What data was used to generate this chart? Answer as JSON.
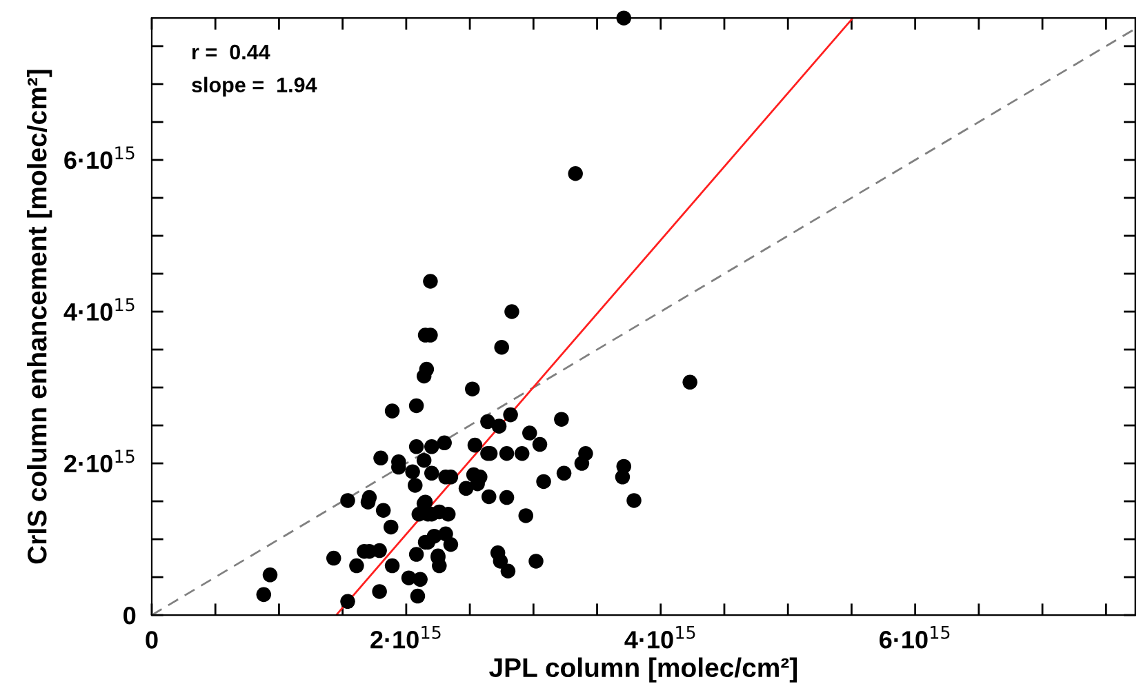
{
  "chart_data": {
    "type": "scatter",
    "xlabel": "JPL column [molec/cm²]",
    "ylabel": "CrIS column enhancement [molec/cm²]",
    "annotations": [
      "r =  0.44",
      "slope =  1.94"
    ],
    "xlim": [
      0,
      7730000000000000.0
    ],
    "ylim": [
      0,
      7870000000000000.0
    ],
    "xticks": [
      0,
      {
        "value": 500000000000000.0,
        "label": null
      },
      {
        "value": 1000000000000000.0,
        "label": null
      },
      {
        "value": 1500000000000000.0,
        "label": null
      },
      {
        "value": 2000000000000000.0,
        "label": "2·10$^{15}$"
      },
      {
        "value": 2500000000000000.0,
        "label": null
      },
      {
        "value": 3000000000000000.0,
        "label": null
      },
      {
        "value": 3500000000000000.0,
        "label": null
      },
      {
        "value": 4000000000000000.0,
        "label": "4·10$^{15}$"
      },
      {
        "value": 4500000000000000.0,
        "label": null
      },
      {
        "value": 5000000000000000.0,
        "label": null
      },
      {
        "value": 5500000000000000.0,
        "label": null
      },
      {
        "value": 6000000000000000.0,
        "label": "6·10$^{15}$"
      },
      {
        "value": 6500000000000000.0,
        "label": null
      },
      {
        "value": 7000000000000000.0,
        "label": null
      },
      {
        "value": 7500000000000000.0,
        "label": null
      }
    ],
    "yticks": [
      0,
      {
        "value": 500000000000000.0,
        "label": null
      },
      {
        "value": 1000000000000000.0,
        "label": null
      },
      {
        "value": 1500000000000000.0,
        "label": null
      },
      {
        "value": 2000000000000000.0,
        "label": "2·10$^{15}$"
      },
      {
        "value": 2500000000000000.0,
        "label": null
      },
      {
        "value": 3000000000000000.0,
        "label": null
      },
      {
        "value": 3500000000000000.0,
        "label": null
      },
      {
        "value": 4000000000000000.0,
        "label": "4·10$^{15}$"
      },
      {
        "value": 4500000000000000.0,
        "label": null
      },
      {
        "value": 5000000000000000.0,
        "label": null
      },
      {
        "value": 5500000000000000.0,
        "label": null
      },
      {
        "value": 6000000000000000.0,
        "label": "6·10$^{15}$"
      },
      {
        "value": 6500000000000000.0,
        "label": null
      },
      {
        "value": 7000000000000000.0,
        "label": null
      },
      {
        "value": 7500000000000000.0,
        "label": null
      }
    ],
    "grid": false,
    "legend": false,
    "series": [
      {
        "type": "line",
        "color": "#808080",
        "line_style": "dashed",
        "marker": "none",
        "x": [
          0,
          7730000000000000.0
        ],
        "values": [
          0,
          7730000000000000.0
        ]
      },
      {
        "type": "line",
        "color": "#ff2020",
        "line_style": "solid",
        "marker": "none",
        "x": [
          1450000000000000.0,
          5510000000000000.0
        ],
        "values": [
          0,
          7870000000000000.0
        ]
      },
      {
        "color": "#000000",
        "marker": "circle",
        "x": [
          2190000000000000.0,
          2150000000000000.0,
          2190000000000000.0,
          2160000000000000.0,
          2140000000000000.0,
          1890000000000000.0,
          2080000000000000.0,
          1800000000000000.0,
          1940000000000000.0,
          1940000000000000.0,
          2080000000000000.0,
          2200000000000000.0,
          2140000000000000.0,
          2050000000000000.0,
          2070000000000000.0,
          2200000000000000.0,
          1540000000000000.0,
          1710000000000000.0,
          1700000000000000.0,
          1820000000000000.0,
          1880000000000000.0,
          2140000000000000.0,
          2100000000000000.0,
          2170000000000000.0,
          1430000000000000.0,
          1610000000000000.0,
          1670000000000000.0,
          1710000000000000.0,
          1790000000000000.0,
          1890000000000000.0,
          2020000000000000.0,
          2110000000000000.0,
          2080000000000000.0,
          2170000000000000.0,
          2220000000000000.0,
          2250000000000000.0,
          2260000000000000.0,
          930000000000000.0,
          880000000000000.0,
          1540000000000000.0,
          1790000000000000.0,
          2090000000000000.0,
          2830000000000000.0,
          2750000000000000.0,
          2520000000000000.0,
          2640000000000000.0,
          2730000000000000.0,
          2820000000000000.0,
          3220000000000000.0,
          2970000000000000.0,
          3050000000000000.0,
          2540000000000000.0,
          2640000000000000.0,
          2660000000000000.0,
          2790000000000000.0,
          2910000000000000.0,
          3410000000000000.0,
          3380000000000000.0,
          3710000000000000.0,
          3700000000000000.0,
          3790000000000000.0,
          3240000000000000.0,
          3080000000000000.0,
          2300000000000000.0,
          2310000000000000.0,
          2350000000000000.0,
          2530000000000000.0,
          2580000000000000.0,
          2560000000000000.0,
          2470000000000000.0,
          2650000000000000.0,
          2790000000000000.0,
          2940000000000000.0,
          2150000000000000.0,
          2200000000000000.0,
          2260000000000000.0,
          2330000000000000.0,
          2310000000000000.0,
          2350000000000000.0,
          2150000000000000.0,
          2250000000000000.0,
          2720000000000000.0,
          2740000000000000.0,
          2800000000000000.0,
          3020000000000000.0,
          3330000000000000.0,
          3710000000000000.0,
          4230000000000000.0
        ],
        "values": [
          4400000000000000.0,
          3690000000000000.0,
          3690000000000000.0,
          3240000000000000.0,
          3150000000000000.0,
          2690000000000000.0,
          2760000000000000.0,
          2070000000000000.0,
          2020000000000000.0,
          1950000000000000.0,
          2220000000000000.0,
          2220000000000000.0,
          2040000000000000.0,
          1890000000000000.0,
          1710000000000000.0,
          1870000000000000.0,
          1510000000000000.0,
          1550000000000000.0,
          1490000000000000.0,
          1380000000000000.0,
          1160000000000000.0,
          1470000000000000.0,
          1330000000000000.0,
          1330000000000000.0,
          750000000000000.0,
          650000000000000.0,
          840000000000000.0,
          840000000000000.0,
          850000000000000.0,
          650000000000000.0,
          490000000000000.0,
          470000000000000.0,
          800000000000000.0,
          960000000000000.0,
          1040000000000000.0,
          780000000000000.0,
          650000000000000.0,
          530000000000000.0,
          270000000000000.0,
          180000000000000.0,
          310000000000000.0,
          250000000000000.0,
          4000000000000000.0,
          3530000000000000.0,
          2980000000000000.0,
          2550000000000000.0,
          2490000000000000.0,
          2640000000000000.0,
          2580000000000000.0,
          2400000000000000.0,
          2250000000000000.0,
          2240000000000000.0,
          2130000000000000.0,
          2130000000000000.0,
          2130000000000000.0,
          2130000000000000.0,
          2130000000000000.0,
          2000000000000000.0,
          1960000000000000.0,
          1820000000000000.0,
          1510000000000000.0,
          1870000000000000.0,
          1760000000000000.0,
          2270000000000000.0,
          1820000000000000.0,
          1820000000000000.0,
          1850000000000000.0,
          1820000000000000.0,
          1730000000000000.0,
          1670000000000000.0,
          1560000000000000.0,
          1550000000000000.0,
          1310000000000000.0,
          1490000000000000.0,
          1330000000000000.0,
          1360000000000000.0,
          1330000000000000.0,
          1070000000000000.0,
          930000000000000.0,
          960000000000000.0,
          760000000000000.0,
          820000000000000.0,
          710000000000000.0,
          580000000000000.0,
          710000000000000.0,
          5820000000000000.0,
          7870000000000000.0,
          3070000000000000.0
        ]
      }
    ]
  }
}
